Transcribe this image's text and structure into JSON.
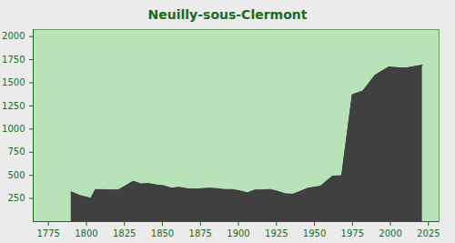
{
  "chart_data": {
    "type": "area",
    "title": "Neuilly-sous-Clermont",
    "x": [
      1790,
      1796,
      1803,
      1806,
      1821,
      1831,
      1836,
      1841,
      1846,
      1851,
      1856,
      1861,
      1866,
      1872,
      1876,
      1881,
      1886,
      1891,
      1896,
      1901,
      1906,
      1911,
      1921,
      1926,
      1931,
      1936,
      1946,
      1954,
      1962,
      1968,
      1975,
      1982,
      1990,
      1999,
      2006,
      2011,
      2021
    ],
    "values": [
      320,
      280,
      250,
      345,
      340,
      435,
      405,
      410,
      395,
      385,
      360,
      370,
      355,
      350,
      355,
      360,
      355,
      345,
      345,
      330,
      310,
      340,
      345,
      325,
      300,
      295,
      360,
      380,
      490,
      495,
      1370,
      1410,
      1580,
      1670,
      1660,
      1660,
      1690
    ],
    "color": "#404040",
    "xlim": [
      1765,
      2032
    ],
    "xticks": [
      1775,
      1800,
      1825,
      1850,
      1875,
      1900,
      1925,
      1950,
      1975,
      2000,
      2025
    ],
    "ylim": [
      0,
      2075
    ],
    "yticks": [
      250,
      500,
      750,
      1000,
      1250,
      1500,
      1750,
      2000
    ],
    "grid": false
  }
}
